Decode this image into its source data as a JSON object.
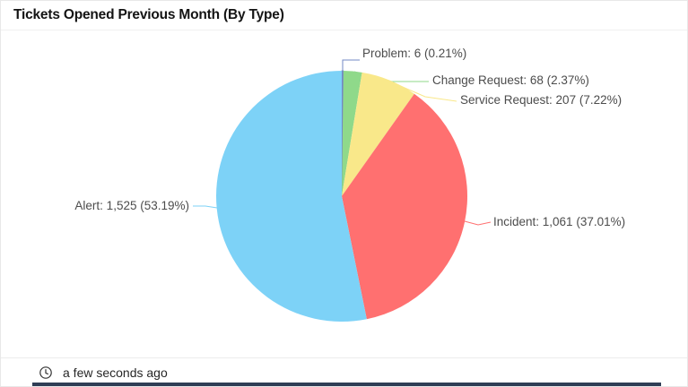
{
  "header": {
    "title": "Tickets Opened Previous Month (By Type)"
  },
  "footer": {
    "updated": "a few seconds ago",
    "icon": "clock-icon"
  },
  "colors": {
    "card_border": "#e8e8e8",
    "title_text": "#141414",
    "label_text": "#4c4c4c",
    "footer_text": "#262626",
    "bottom_bar": "#2f3d55"
  },
  "chart_data": {
    "type": "pie",
    "title": "Tickets Opened Previous Month (By Type)",
    "legend": "none",
    "start_angle_deg": 0,
    "direction": "clockwise",
    "label_format": "{label}: {value} ({pct}%)",
    "slices": [
      {
        "label": "Problem",
        "value": 6,
        "value_display": "6",
        "pct": 0.21,
        "color": "#7389c4"
      },
      {
        "label": "Change Request",
        "value": 68,
        "value_display": "68",
        "pct": 2.37,
        "color": "#8fd98a"
      },
      {
        "label": "Service Request",
        "value": 207,
        "value_display": "207",
        "pct": 7.22,
        "color": "#f9e88a"
      },
      {
        "label": "Incident",
        "value": 1061,
        "value_display": "1,061",
        "pct": 37.01,
        "color": "#ff7070"
      },
      {
        "label": "Alert",
        "value": 1525,
        "value_display": "1,525",
        "pct": 53.19,
        "color": "#7dd2f7"
      }
    ]
  }
}
